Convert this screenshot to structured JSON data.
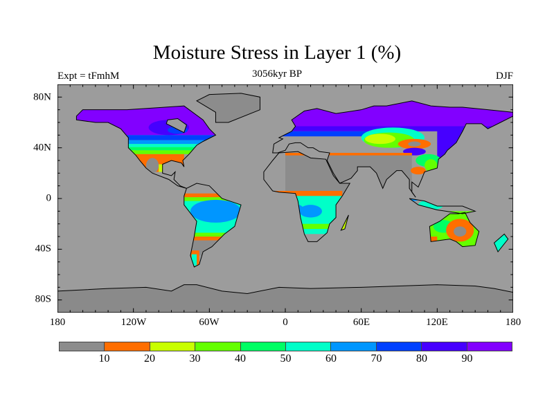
{
  "title": "Moisture Stress in Layer 1 (%)",
  "left_label": "Expt = tFmhM",
  "center_label": "3056kyr BP",
  "right_label": "DJF",
  "lat_labels": [
    "80N",
    "40N",
    "0",
    "40S",
    "80S"
  ],
  "lon_labels": [
    "180",
    "120W",
    "60W",
    "0",
    "60E",
    "120E",
    "180"
  ],
  "colorbar": {
    "levels": [
      "10",
      "20",
      "30",
      "40",
      "50",
      "60",
      "70",
      "80",
      "90"
    ],
    "colors": [
      "#8c8c8c",
      "#ff6e00",
      "#c8ff00",
      "#64ff00",
      "#00ff64",
      "#00ffc8",
      "#0096ff",
      "#0040ff",
      "#4600ff",
      "#8200ff"
    ]
  },
  "colors": {
    "ocean": "#9c9c9c",
    "antarctica": "#8a8a8a",
    "coast": "#000000"
  }
}
